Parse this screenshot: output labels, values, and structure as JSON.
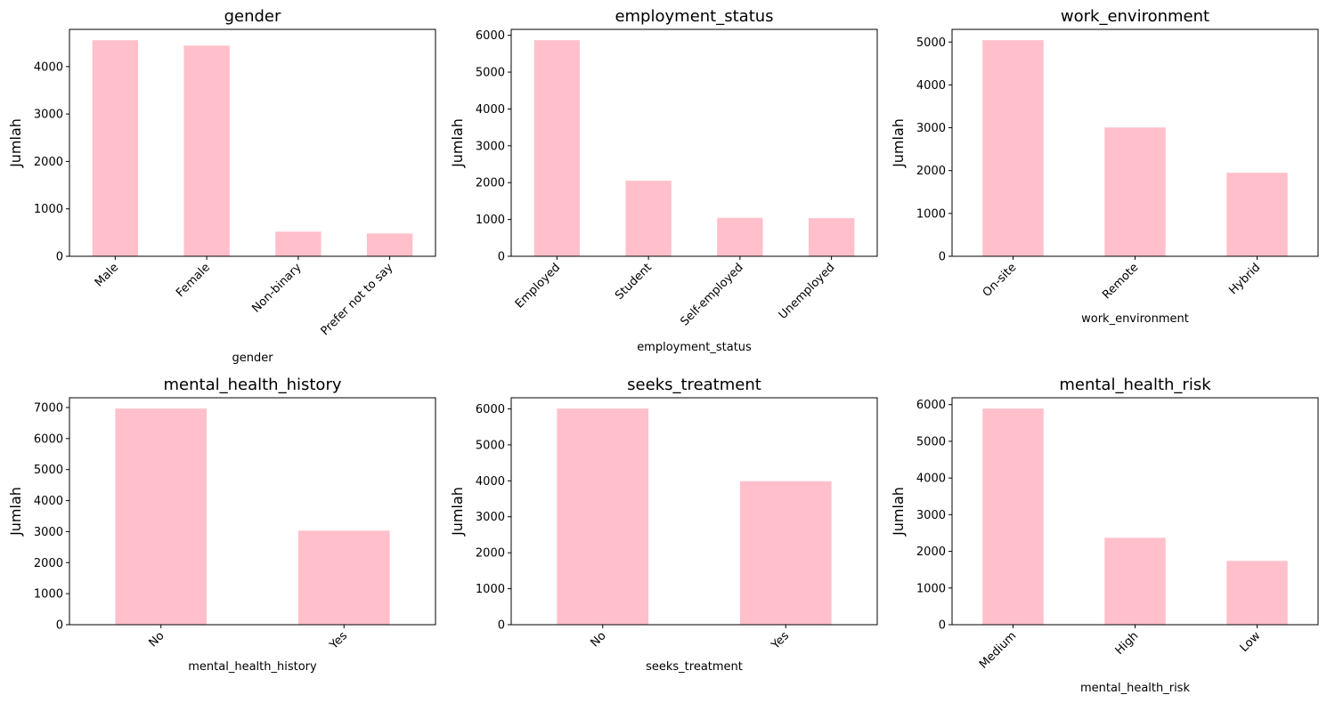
{
  "chart_data": [
    {
      "type": "bar",
      "title": "gender",
      "xlabel": "gender",
      "ylabel": "Jumlah",
      "categories": [
        "Male",
        "Female",
        "Non-binary",
        "Prefer not to say"
      ],
      "values": [
        4557,
        4442,
        520,
        481
      ],
      "ylim": [
        0,
        4785
      ],
      "yticks": [
        0,
        1000,
        2000,
        3000,
        4000
      ],
      "xtick_rotation": 45,
      "bar_color": "#ffc0cb",
      "grid": false
    },
    {
      "type": "bar",
      "title": "employment_status",
      "xlabel": "employment_status",
      "ylabel": "Jumlah",
      "categories": [
        "Employed",
        "Student",
        "Self-employed",
        "Unemployed"
      ],
      "values": [
        5868,
        2051,
        1045,
        1036
      ],
      "ylim": [
        0,
        6161
      ],
      "yticks": [
        0,
        1000,
        2000,
        3000,
        4000,
        5000,
        6000
      ],
      "xtick_rotation": 45,
      "bar_color": "#ffc0cb",
      "grid": false
    },
    {
      "type": "bar",
      "title": "work_environment",
      "xlabel": "work_environment",
      "ylabel": "Jumlah",
      "categories": [
        "On-site",
        "Remote",
        "Hybrid"
      ],
      "values": [
        5044,
        3007,
        1949
      ],
      "ylim": [
        0,
        5296
      ],
      "yticks": [
        0,
        1000,
        2000,
        3000,
        4000,
        5000
      ],
      "xtick_rotation": 45,
      "bar_color": "#ffc0cb",
      "grid": false
    },
    {
      "type": "bar",
      "title": "mental_health_history",
      "xlabel": "mental_health_history",
      "ylabel": "Jumlah",
      "categories": [
        "No",
        "Yes"
      ],
      "values": [
        6966,
        3034
      ],
      "ylim": [
        0,
        7314
      ],
      "yticks": [
        0,
        1000,
        2000,
        3000,
        4000,
        5000,
        6000,
        7000
      ],
      "xtick_rotation": 45,
      "bar_color": "#ffc0cb",
      "grid": false
    },
    {
      "type": "bar",
      "title": "seeks_treatment",
      "xlabel": "seeks_treatment",
      "ylabel": "Jumlah",
      "categories": [
        "No",
        "Yes"
      ],
      "values": [
        6009,
        3991
      ],
      "ylim": [
        0,
        6309
      ],
      "yticks": [
        0,
        1000,
        2000,
        3000,
        4000,
        5000,
        6000
      ],
      "xtick_rotation": 45,
      "bar_color": "#ffc0cb",
      "grid": false
    },
    {
      "type": "bar",
      "title": "mental_health_risk",
      "xlabel": "mental_health_risk",
      "ylabel": "Jumlah",
      "categories": [
        "Medium",
        "High",
        "Low"
      ],
      "values": [
        5892,
        2369,
        1739
      ],
      "ylim": [
        0,
        6187
      ],
      "yticks": [
        0,
        1000,
        2000,
        3000,
        4000,
        5000,
        6000
      ],
      "xtick_rotation": 45,
      "bar_color": "#ffc0cb",
      "grid": false
    }
  ]
}
